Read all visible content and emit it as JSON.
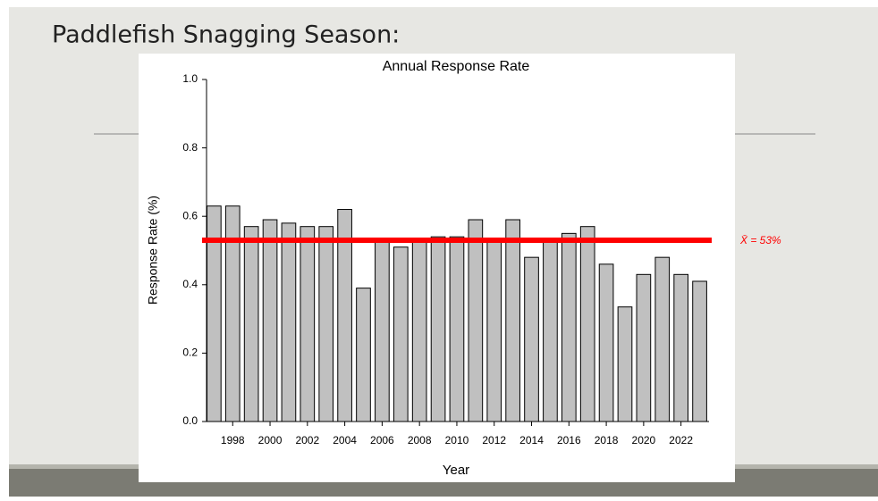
{
  "slide_title": "Paddlefish Snagging Season:",
  "chart_data": {
    "type": "bar",
    "title": "Annual Response Rate",
    "x_label": "Year",
    "y_label": "Response Rate (%)",
    "x": [
      1997,
      1998,
      1999,
      2000,
      2001,
      2002,
      2003,
      2004,
      2005,
      2006,
      2007,
      2008,
      2009,
      2010,
      2011,
      2012,
      2013,
      2014,
      2015,
      2016,
      2017,
      2018,
      2019,
      2020,
      2021,
      2022,
      2023
    ],
    "values": [
      0.63,
      0.63,
      0.57,
      0.59,
      0.58,
      0.57,
      0.57,
      0.62,
      0.39,
      0.53,
      0.51,
      0.53,
      0.54,
      0.54,
      0.59,
      0.53,
      0.59,
      0.48,
      0.53,
      0.55,
      0.57,
      0.46,
      0.335,
      0.43,
      0.48,
      0.43,
      0.41
    ],
    "color": "#c0c0c0",
    "xlim": [
      1996.6,
      2023.5
    ],
    "xticks": [
      1998,
      2000,
      2002,
      2004,
      2006,
      2008,
      2010,
      2012,
      2014,
      2016,
      2018,
      2020,
      2022
    ],
    "ylim": [
      0,
      1
    ],
    "yticks": [
      {
        "value": 0,
        "label": "0.0"
      },
      0.2,
      0.4,
      0.6,
      0.8,
      {
        "value": 1,
        "label": "1.0"
      }
    ],
    "mean_line": {
      "value": 0.53,
      "label": "X̄ = 53%",
      "color": "#ff0000"
    }
  }
}
